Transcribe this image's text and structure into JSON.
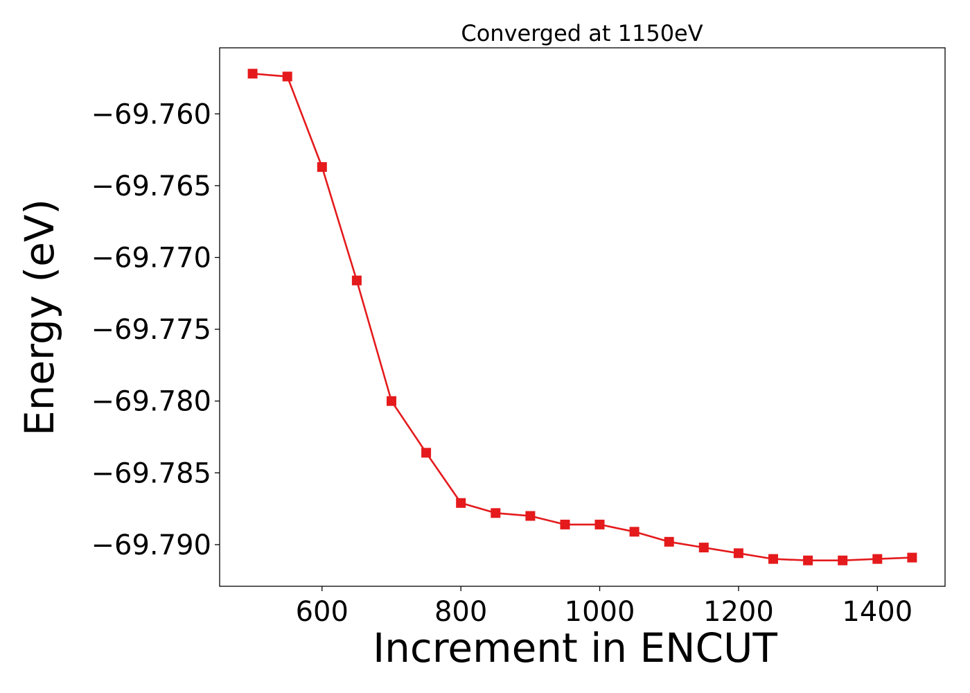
{
  "chart_data": {
    "type": "line",
    "title": "Converged at 1150eV",
    "xlabel": "Increment in ENCUT",
    "ylabel": "Energy (eV)",
    "xlim": [
      452.5,
      1497.5
    ],
    "ylim": [
      -69.7929,
      -69.7554
    ],
    "xticks": [
      600,
      800,
      1000,
      1200,
      1400
    ],
    "xtick_labels": [
      "600",
      "800",
      "1000",
      "1200",
      "1400"
    ],
    "yticks": [
      -69.76,
      -69.765,
      -69.77,
      -69.775,
      -69.78,
      -69.785,
      -69.79
    ],
    "ytick_labels": [
      "−69.760",
      "−69.765",
      "−69.770",
      "−69.775",
      "−69.780",
      "−69.785",
      "−69.790"
    ],
    "grid": false,
    "legend": false,
    "series": [
      {
        "color": "#e41a1c",
        "marker": "square",
        "x": [
          500,
          550,
          600,
          650,
          700,
          750,
          800,
          850,
          900,
          950,
          1000,
          1050,
          1100,
          1150,
          1200,
          1250,
          1300,
          1350,
          1400,
          1450
        ],
        "y": [
          -69.7572,
          -69.7574,
          -69.7637,
          -69.7716,
          -69.78,
          -69.7836,
          -69.7871,
          -69.7878,
          -69.788,
          -69.7886,
          -69.7886,
          -69.7891,
          -69.7898,
          -69.7902,
          -69.7906,
          -69.791,
          -69.7911,
          -69.7911,
          -69.791,
          -69.7909
        ]
      }
    ]
  }
}
